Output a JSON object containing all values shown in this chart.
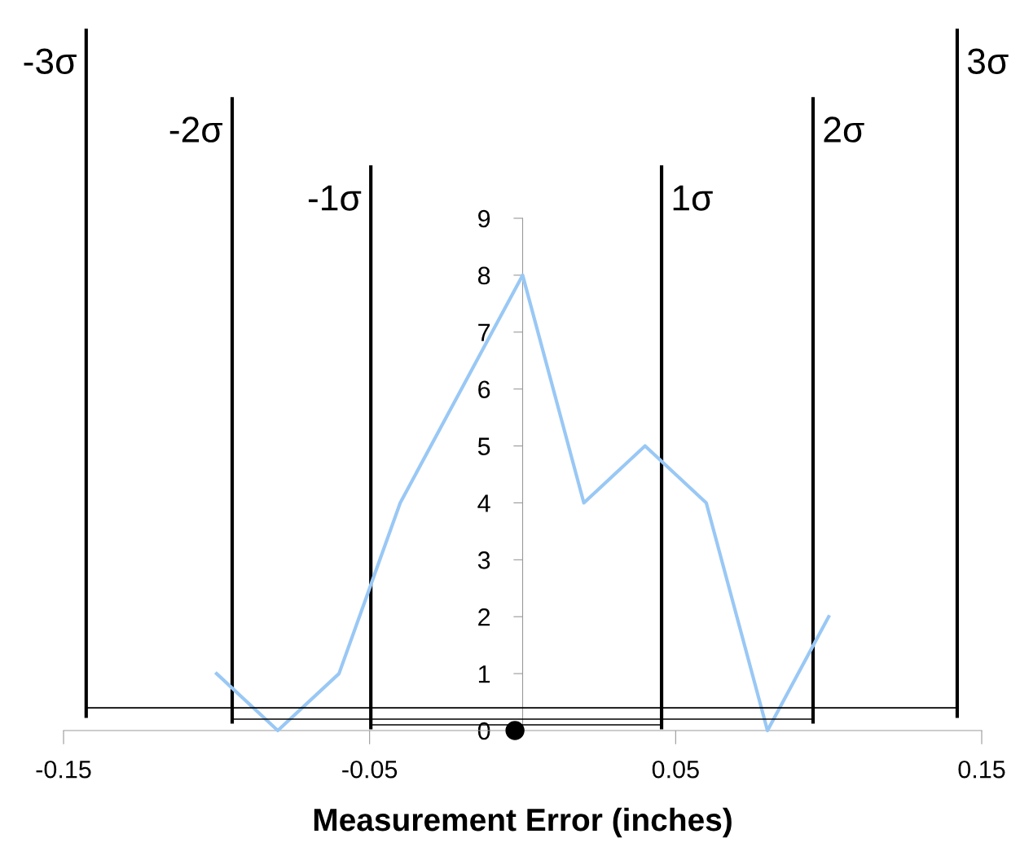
{
  "chart_data": {
    "type": "line",
    "xlabel": "Measurement Error (inches)",
    "series": [
      {
        "color": "#99c8f5",
        "x": [
          -0.1,
          -0.08,
          -0.06,
          -0.04,
          -0.02,
          0,
          0.02,
          0.04,
          0.06,
          0.08,
          0.1
        ],
        "values": [
          1,
          0,
          1,
          4,
          6,
          8,
          4,
          5,
          4,
          0,
          2
        ]
      },
      {
        "type": "scatter",
        "color": "#000000",
        "marker": "circle",
        "x": [
          -0.0025
        ],
        "values": [
          0
        ]
      },
      {
        "color": "#000000",
        "x": [
          -0.1426,
          0.142
        ],
        "values": [
          0.4,
          0.4
        ]
      },
      {
        "color": "#000000",
        "x": [
          -0.0949,
          0.0949
        ],
        "values": [
          0.2,
          0.2
        ]
      },
      {
        "color": "#000000",
        "x": [
          -0.0496,
          0.0454
        ],
        "values": [
          0.1,
          0.1
        ]
      }
    ],
    "xlim": [
      -0.15,
      0.15
    ],
    "xticks": [
      -0.15,
      -0.05,
      0.05,
      0.15
    ],
    "ylim": [
      0,
      9
    ],
    "yticks": [
      0,
      1,
      2,
      3,
      4,
      5,
      6,
      7,
      8,
      9
    ],
    "grid": false,
    "legend": false,
    "marker": "none",
    "line_style": "solid",
    "ref_lines": [
      {
        "axis": "x",
        "value": -0.1426,
        "label": "-3σ",
        "color": "#000000"
      },
      {
        "axis": "x",
        "value": -0.0949,
        "label": "-2σ",
        "color": "#000000"
      },
      {
        "axis": "x",
        "value": -0.0496,
        "label": "-1σ",
        "color": "#000000"
      },
      {
        "axis": "x",
        "value": 0.0454,
        "label": "1σ",
        "color": "#000000"
      },
      {
        "axis": "x",
        "value": 0.0949,
        "label": "2σ",
        "color": "#000000"
      },
      {
        "axis": "x",
        "value": 0.142,
        "label": "3σ",
        "color": "#000000"
      }
    ]
  }
}
